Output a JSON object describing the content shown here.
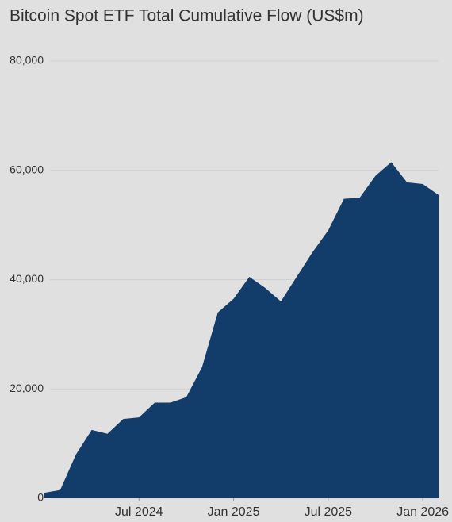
{
  "chart_data": {
    "type": "area",
    "title": "Bitcoin Spot ETF Total Cumulative Flow (US$m)",
    "x": [
      "2024-01",
      "2024-02",
      "2024-03",
      "2024-04",
      "2024-05",
      "2024-06",
      "2024-07",
      "2024-08",
      "2024-09",
      "2024-10",
      "2024-11",
      "2024-12",
      "2025-01",
      "2025-02",
      "2025-03",
      "2025-04",
      "2025-05",
      "2025-06",
      "2025-07",
      "2025-08",
      "2025-09",
      "2025-10",
      "2025-11",
      "2025-12",
      "2026-01",
      "2026-02"
    ],
    "values": [
      1000,
      1500,
      8000,
      12500,
      11800,
      14500,
      14800,
      17500,
      17500,
      18500,
      24000,
      34000,
      36500,
      40500,
      38500,
      36000,
      40500,
      45000,
      49000,
      54800,
      55000,
      59000,
      61500,
      57800,
      57500,
      55500
    ],
    "color": "#123d6a",
    "xlim": [
      "2024-01",
      "2026-02"
    ],
    "xticks": [
      {
        "value": "2024-07",
        "label": "Jul 2024"
      },
      {
        "value": "2025-01",
        "label": "Jan 2025"
      },
      {
        "value": "2025-07",
        "label": "Jul 2025"
      },
      {
        "value": "2026-01",
        "label": "Jan 2026"
      }
    ],
    "ylim": [
      0,
      80000
    ],
    "yticks": [
      {
        "value": 0,
        "label": "0"
      },
      {
        "value": 20000,
        "label": "20,000"
      },
      {
        "value": 40000,
        "label": "40,000"
      },
      {
        "value": 60000,
        "label": "60,000"
      },
      {
        "value": 80000,
        "label": "80,000"
      }
    ],
    "grid": true
  }
}
